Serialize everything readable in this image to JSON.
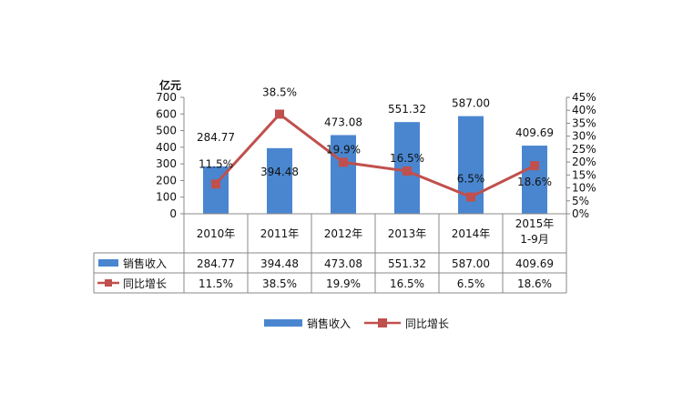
{
  "chart_data": {
    "type": "bar+line",
    "ylabel": "亿元",
    "categories": [
      "2010年",
      "2011年",
      "2012年",
      "2013年",
      "2014年",
      "2015年\n1-9月"
    ],
    "series": [
      {
        "name": "销售收入",
        "type": "bar",
        "axis": "left",
        "values": [
          284.77,
          394.48,
          473.08,
          551.32,
          587.0,
          409.69
        ],
        "labels": [
          "284.77",
          "394.48",
          "473.08",
          "551.32",
          "587.00",
          "409.69"
        ],
        "color": "#4a86cf"
      },
      {
        "name": "同比增长",
        "type": "line",
        "axis": "right",
        "values": [
          11.5,
          38.5,
          19.9,
          16.5,
          6.5,
          18.6
        ],
        "labels": [
          "11.5%",
          "38.5%",
          "19.9%",
          "16.5%",
          "6.5%",
          "18.6%"
        ],
        "color": "#c0504d"
      }
    ],
    "ylim": [
      0,
      700
    ],
    "yticks": [
      "0",
      "100",
      "200",
      "300",
      "400",
      "500",
      "600",
      "700"
    ],
    "y2lim": [
      0,
      45
    ],
    "y2ticks": [
      "0%",
      "5%",
      "10%",
      "15%",
      "20%",
      "25%",
      "30%",
      "35%",
      "40%",
      "45%"
    ],
    "data_table": true,
    "legend": "bottom",
    "grid": false
  }
}
